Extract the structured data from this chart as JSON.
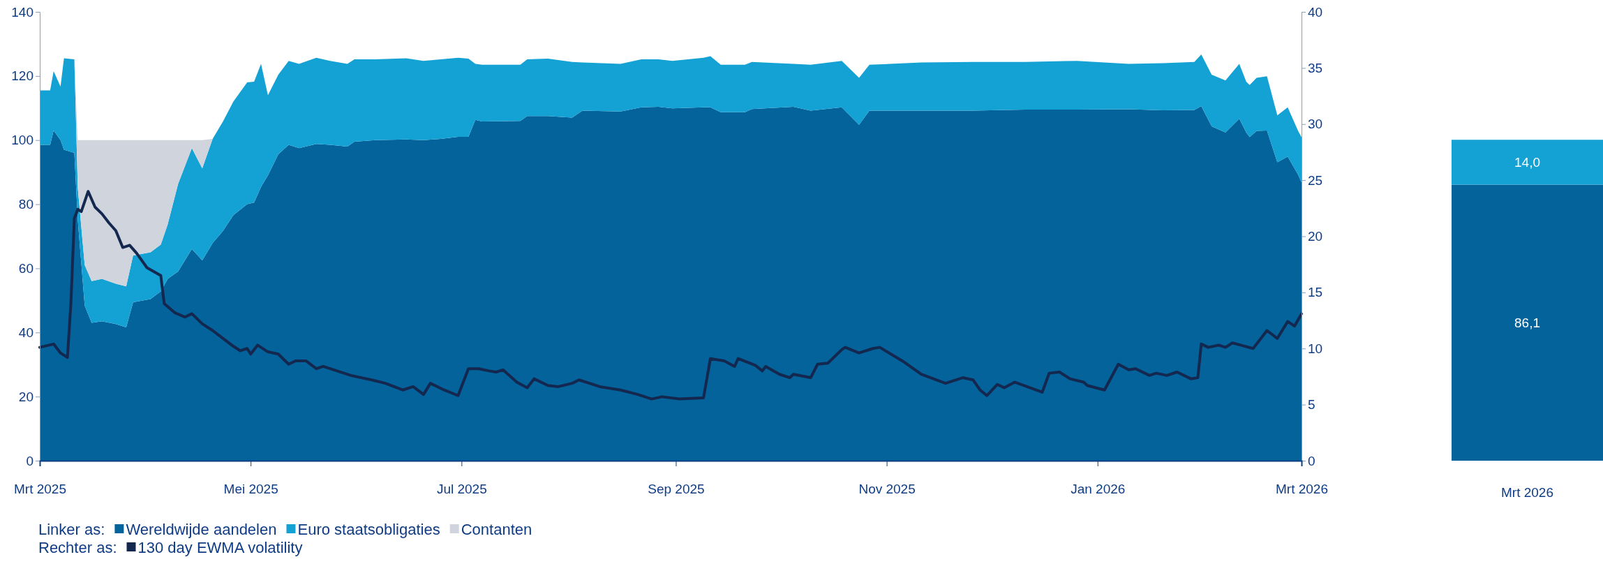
{
  "chart_data": [
    {
      "type": "area",
      "stacked": true,
      "legend": "bottom",
      "annotations": [
        "Linker as:",
        "Rechter as:"
      ],
      "xlim": [
        "2025-03-01",
        "2026-03-01"
      ],
      "xticks": [
        {
          "value": "2025-03-01",
          "label": "Mrt 2025"
        },
        {
          "value": "2025-05-01",
          "label": "Mei 2025"
        },
        {
          "value": "2025-07-01",
          "label": "Jul 2025"
        },
        {
          "value": "2025-09-01",
          "label": "Sep 2025"
        },
        {
          "value": "2025-11-01",
          "label": "Nov 2025"
        },
        {
          "value": "2026-01-01",
          "label": "Jan 2026"
        },
        {
          "value": "2026-03-01",
          "label": "Mrt 2026"
        }
      ],
      "ylim": [
        0,
        140
      ],
      "yticks": [
        0,
        20,
        40,
        60,
        80,
        100,
        120,
        140
      ],
      "y2lim": [
        0,
        40
      ],
      "y2ticks": [
        0,
        5,
        10,
        15,
        20,
        25,
        30,
        35,
        40
      ],
      "x": [
        "2025-03-01",
        "2025-03-04",
        "2025-03-05",
        "2025-03-07",
        "2025-03-08",
        "2025-03-11",
        "2025-03-12",
        "2025-03-14",
        "2025-03-16",
        "2025-03-19",
        "2025-03-23",
        "2025-03-26",
        "2025-03-28",
        "2025-04-02",
        "2025-04-05",
        "2025-04-07",
        "2025-04-10",
        "2025-04-14",
        "2025-04-17",
        "2025-04-20",
        "2025-04-23",
        "2025-04-26",
        "2025-04-30",
        "2025-05-02",
        "2025-05-04",
        "2025-05-06",
        "2025-05-09",
        "2025-05-12",
        "2025-05-15",
        "2025-05-20",
        "2025-05-24",
        "2025-05-29",
        "2025-05-31",
        "2025-06-06",
        "2025-06-15",
        "2025-06-20",
        "2025-06-25",
        "2025-06-30",
        "2025-07-03",
        "2025-07-05",
        "2025-07-07",
        "2025-07-18",
        "2025-07-20",
        "2025-07-26",
        "2025-08-02",
        "2025-08-05",
        "2025-08-16",
        "2025-08-22",
        "2025-08-27",
        "2025-08-31",
        "2025-09-09",
        "2025-09-11",
        "2025-09-14",
        "2025-09-21",
        "2025-09-23",
        "2025-10-05",
        "2025-10-10",
        "2025-10-19",
        "2025-10-24",
        "2025-10-27",
        "2025-11-11",
        "2025-11-26",
        "2025-12-11",
        "2025-12-26",
        "2026-01-10",
        "2026-01-20",
        "2026-01-29",
        "2026-01-31",
        "2026-02-03",
        "2026-02-07",
        "2026-02-11",
        "2026-02-13",
        "2026-02-14",
        "2026-02-16",
        "2026-02-19",
        "2026-02-22",
        "2026-02-25",
        "2026-02-28",
        "2026-03-01"
      ],
      "series": [
        {
          "name": "Wereldwijde aandelen",
          "color": "#03639a",
          "values": [
            98.5,
            98.5,
            103,
            100,
            97,
            96,
            75,
            48.4,
            43,
            43.5,
            42.6,
            41.6,
            49.4,
            50.4,
            52.8,
            56.7,
            59,
            66,
            62.5,
            67.9,
            71.7,
            76.6,
            80,
            80.5,
            85.4,
            89,
            95.6,
            98.5,
            97.5,
            98.8,
            98.5,
            98,
            99.5,
            100,
            100.2,
            100,
            100.4,
            101,
            101,
            106.3,
            105.8,
            106,
            107.5,
            107.5,
            107,
            109.2,
            108.9,
            110.2,
            110.4,
            109.9,
            110.2,
            110.2,
            108.7,
            108.7,
            109.7,
            110.4,
            109.2,
            110.2,
            104.8,
            109.2,
            109.2,
            109.2,
            109.5,
            109.5,
            109.6,
            109.3,
            109.4,
            110.6,
            104.3,
            102.4,
            106.7,
            102.4,
            100.9,
            102.9,
            103,
            93.1,
            94.9,
            89.2,
            86.8
          ]
        },
        {
          "name": "Euro staatsobligaties",
          "color": "#14a1d4",
          "values": [
            17,
            17,
            18.5,
            16.7,
            28.5,
            29.2,
            10,
            12.6,
            13,
            13.2,
            12.6,
            12.8,
            14.6,
            14.6,
            14.6,
            17,
            27.3,
            31.5,
            28.7,
            32.5,
            34.1,
            35.4,
            38,
            37.7,
            38.4,
            25,
            24.8,
            26.2,
            26.3,
            26.9,
            26.2,
            25.8,
            25.7,
            25.2,
            25.3,
            24.7,
            24.8,
            24.7,
            24.4,
            17.5,
            17.7,
            17.5,
            17.7,
            17.9,
            17.4,
            15,
            14.9,
            15,
            14.8,
            14.8,
            15.5,
            16,
            14.8,
            14.8,
            14.7,
            13.4,
            14.3,
            14.5,
            14.6,
            14.3,
            15,
            15.2,
            14.9,
            15.2,
            14.2,
            14.7,
            15,
            16.1,
            16.1,
            16.2,
            17.1,
            15.8,
            16.3,
            16.5,
            16.9,
            14.6,
            15.3,
            13.7,
            14.1
          ]
        },
        {
          "name": "Contanten",
          "color": "#d0d4dd",
          "values": [
            0,
            0,
            0,
            0,
            0,
            0,
            15,
            39,
            44,
            43.3,
            44.8,
            45.6,
            36,
            35,
            32.6,
            26.3,
            13.7,
            2.5,
            8.8,
            0,
            0,
            0,
            0,
            0,
            0,
            0,
            0,
            0,
            0,
            0,
            0,
            0,
            0,
            0,
            0,
            0,
            0,
            0,
            0,
            0,
            0,
            0,
            0,
            0,
            0,
            0,
            0,
            0,
            0,
            0,
            0,
            0,
            0,
            0,
            0,
            0,
            0,
            0,
            0,
            0,
            0,
            0,
            0,
            0,
            0,
            0,
            0,
            0,
            0,
            0,
            0,
            0,
            0,
            0,
            0,
            0,
            0,
            0,
            0
          ]
        },
        {
          "name": "130 day EWMA volatility",
          "type": "line",
          "axis": "y2",
          "color": "#14284f",
          "x": [
            "2025-03-01",
            "2025-03-05",
            "2025-03-07",
            "2025-03-09",
            "2025-03-10",
            "2025-03-11",
            "2025-03-12",
            "2025-03-13",
            "2025-03-15",
            "2025-03-17",
            "2025-03-19",
            "2025-03-21",
            "2025-03-23",
            "2025-03-25",
            "2025-03-27",
            "2025-03-29",
            "2025-04-01",
            "2025-04-05",
            "2025-04-06",
            "2025-04-09",
            "2025-04-12",
            "2025-04-14",
            "2025-04-17",
            "2025-04-20",
            "2025-04-23",
            "2025-04-26",
            "2025-04-28",
            "2025-04-30",
            "2025-05-01",
            "2025-05-03",
            "2025-05-06",
            "2025-05-09",
            "2025-05-12",
            "2025-05-14",
            "2025-05-17",
            "2025-05-20",
            "2025-05-22",
            "2025-05-26",
            "2025-05-30",
            "2025-06-05",
            "2025-06-09",
            "2025-06-14",
            "2025-06-17",
            "2025-06-20",
            "2025-06-22",
            "2025-06-26",
            "2025-06-30",
            "2025-07-03",
            "2025-07-06",
            "2025-07-09",
            "2025-07-11",
            "2025-07-13",
            "2025-07-17",
            "2025-07-20",
            "2025-07-22",
            "2025-07-26",
            "2025-07-29",
            "2025-08-02",
            "2025-08-04",
            "2025-08-10",
            "2025-08-16",
            "2025-08-21",
            "2025-08-25",
            "2025-08-28",
            "2025-09-02",
            "2025-09-09",
            "2025-09-11",
            "2025-09-15",
            "2025-09-18",
            "2025-09-19",
            "2025-09-24",
            "2025-09-26",
            "2025-09-27",
            "2025-10-01",
            "2025-10-04",
            "2025-10-05",
            "2025-10-10",
            "2025-10-12",
            "2025-10-15",
            "2025-10-19",
            "2025-10-20",
            "2025-10-24",
            "2025-10-28",
            "2025-10-30",
            "2025-11-06",
            "2025-11-11",
            "2025-11-18",
            "2025-11-23",
            "2025-11-26",
            "2025-11-28",
            "2025-11-30",
            "2025-12-03",
            "2025-12-05",
            "2025-12-08",
            "2025-12-16",
            "2025-12-18",
            "2025-12-21",
            "2025-12-24",
            "2025-12-28",
            "2025-12-29",
            "2026-01-03",
            "2026-01-07",
            "2026-01-10",
            "2026-01-12",
            "2026-01-16",
            "2026-01-18",
            "2026-01-21",
            "2026-01-24",
            "2026-01-28",
            "2026-01-30",
            "2026-01-31",
            "2026-02-02",
            "2026-02-05",
            "2026-02-07",
            "2026-02-09",
            "2026-02-15",
            "2026-02-19",
            "2026-02-22",
            "2026-02-25",
            "2026-02-27",
            "2026-03-01"
          ],
          "values": [
            10.1,
            10.4,
            9.6,
            9.2,
            14,
            21.6,
            22.4,
            22.2,
            24,
            22.6,
            22,
            21.2,
            20.5,
            19,
            19.2,
            18.5,
            17.2,
            16.5,
            14,
            13.2,
            12.8,
            13.1,
            12.2,
            11.6,
            10.9,
            10.2,
            9.8,
            10,
            9.5,
            10.3,
            9.7,
            9.5,
            8.6,
            8.9,
            8.9,
            8.2,
            8.4,
            8,
            7.6,
            7.2,
            6.9,
            6.3,
            6.6,
            5.9,
            6.9,
            6.3,
            5.8,
            8.2,
            8.2,
            8,
            7.9,
            8.1,
            7,
            6.5,
            7.3,
            6.7,
            6.6,
            6.9,
            7.2,
            6.6,
            6.3,
            5.9,
            5.5,
            5.7,
            5.5,
            5.6,
            9.1,
            8.9,
            8.4,
            9.1,
            8.5,
            8,
            8.4,
            7.7,
            7.4,
            7.7,
            7.4,
            8.6,
            8.7,
            9.9,
            10.1,
            9.6,
            10,
            10.1,
            8.8,
            7.7,
            6.9,
            7.4,
            7.2,
            6.3,
            5.8,
            6.8,
            6.5,
            7,
            6.1,
            7.8,
            7.9,
            7.3,
            7,
            6.7,
            6.3,
            8.6,
            8.1,
            8.2,
            7.6,
            7.8,
            7.6,
            7.9,
            7.3,
            7.4,
            10.4,
            10.1,
            10.3,
            10.1,
            10.5,
            10,
            11.6,
            10.9,
            12.4,
            12,
            13.1
          ]
        }
      ]
    },
    {
      "type": "bar",
      "stacked": true,
      "categories": [
        "Mrt 2026"
      ],
      "ylim": [
        0,
        140
      ],
      "tick_labels": "x",
      "series": [
        {
          "color": "#03639a",
          "values": [
            86.1
          ],
          "value_labels": [
            "86,1"
          ]
        },
        {
          "color": "#14a1d4",
          "values": [
            14.0
          ],
          "value_labels": [
            "14,0"
          ]
        }
      ]
    }
  ]
}
